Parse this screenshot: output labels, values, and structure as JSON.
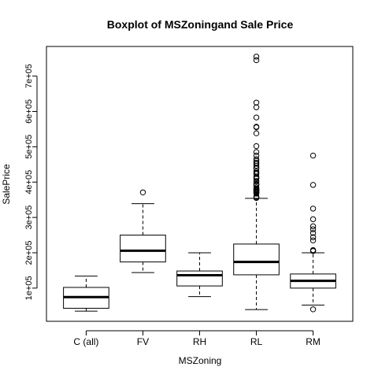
{
  "chart_data": {
    "type": "boxplot",
    "title": "Boxplot of MSZoningand Sale Price",
    "xlabel": "MSZoning",
    "ylabel": "SalePrice",
    "categories": [
      "C (all)",
      "FV",
      "RH",
      "RL",
      "RM"
    ],
    "y_ticks": [
      {
        "value": 100000,
        "label": "1e+05"
      },
      {
        "value": 200000,
        "label": "2e+05"
      },
      {
        "value": 300000,
        "label": "3e+05"
      },
      {
        "value": 400000,
        "label": "4e+05"
      },
      {
        "value": 500000,
        "label": "5e+05"
      },
      {
        "value": 600000,
        "label": "6e+05"
      },
      {
        "value": 700000,
        "label": "7e+05"
      }
    ],
    "ylim": [
      34900,
      755000
    ],
    "boxes": [
      {
        "category": "C (all)",
        "whisker_low": 34900,
        "q1": 43000,
        "median": 74700,
        "q3": 102000,
        "whisker_high": 133900,
        "outliers": []
      },
      {
        "category": "FV",
        "whisker_low": 144000,
        "q1": 174000,
        "median": 205950,
        "q3": 250000,
        "whisker_high": 339000,
        "outliers": [
          370878
        ]
      },
      {
        "category": "RH",
        "whisker_low": 76000,
        "q1": 106150,
        "median": 136500,
        "q3": 148500,
        "whisker_high": 200000,
        "outliers": []
      },
      {
        "category": "RL",
        "whisker_low": 39300,
        "q1": 137700,
        "median": 174000,
        "q3": 224700,
        "whisker_high": 354000,
        "outliers": [
          755000,
          745000,
          625000,
          611657,
          582933,
          556581,
          555000,
          538000,
          501837,
          485000,
          475000,
          465000,
          460000,
          455000,
          451950,
          446261,
          440000,
          438780,
          430000,
          426000,
          423000,
          415298,
          412500,
          410000,
          402861,
          402000,
          395192,
          394617,
          392500,
          392000,
          385000,
          381000,
          380000,
          378500,
          377500,
          377426,
          376162,
          375000,
          372500,
          372402,
          370967,
          369900,
          367294,
          359100,
          356383,
          355000
        ]
      },
      {
        "category": "RM",
        "whisker_low": 52000,
        "q1": 100000,
        "median": 120500,
        "q3": 140000,
        "whisker_high": 200100,
        "outliers": [
          40000,
          475000,
          392000,
          325000,
          295000,
          274900,
          266500,
          256000,
          244000,
          235000,
          207500,
          206300,
          205000
        ]
      }
    ],
    "grid": false,
    "legend": "none"
  }
}
